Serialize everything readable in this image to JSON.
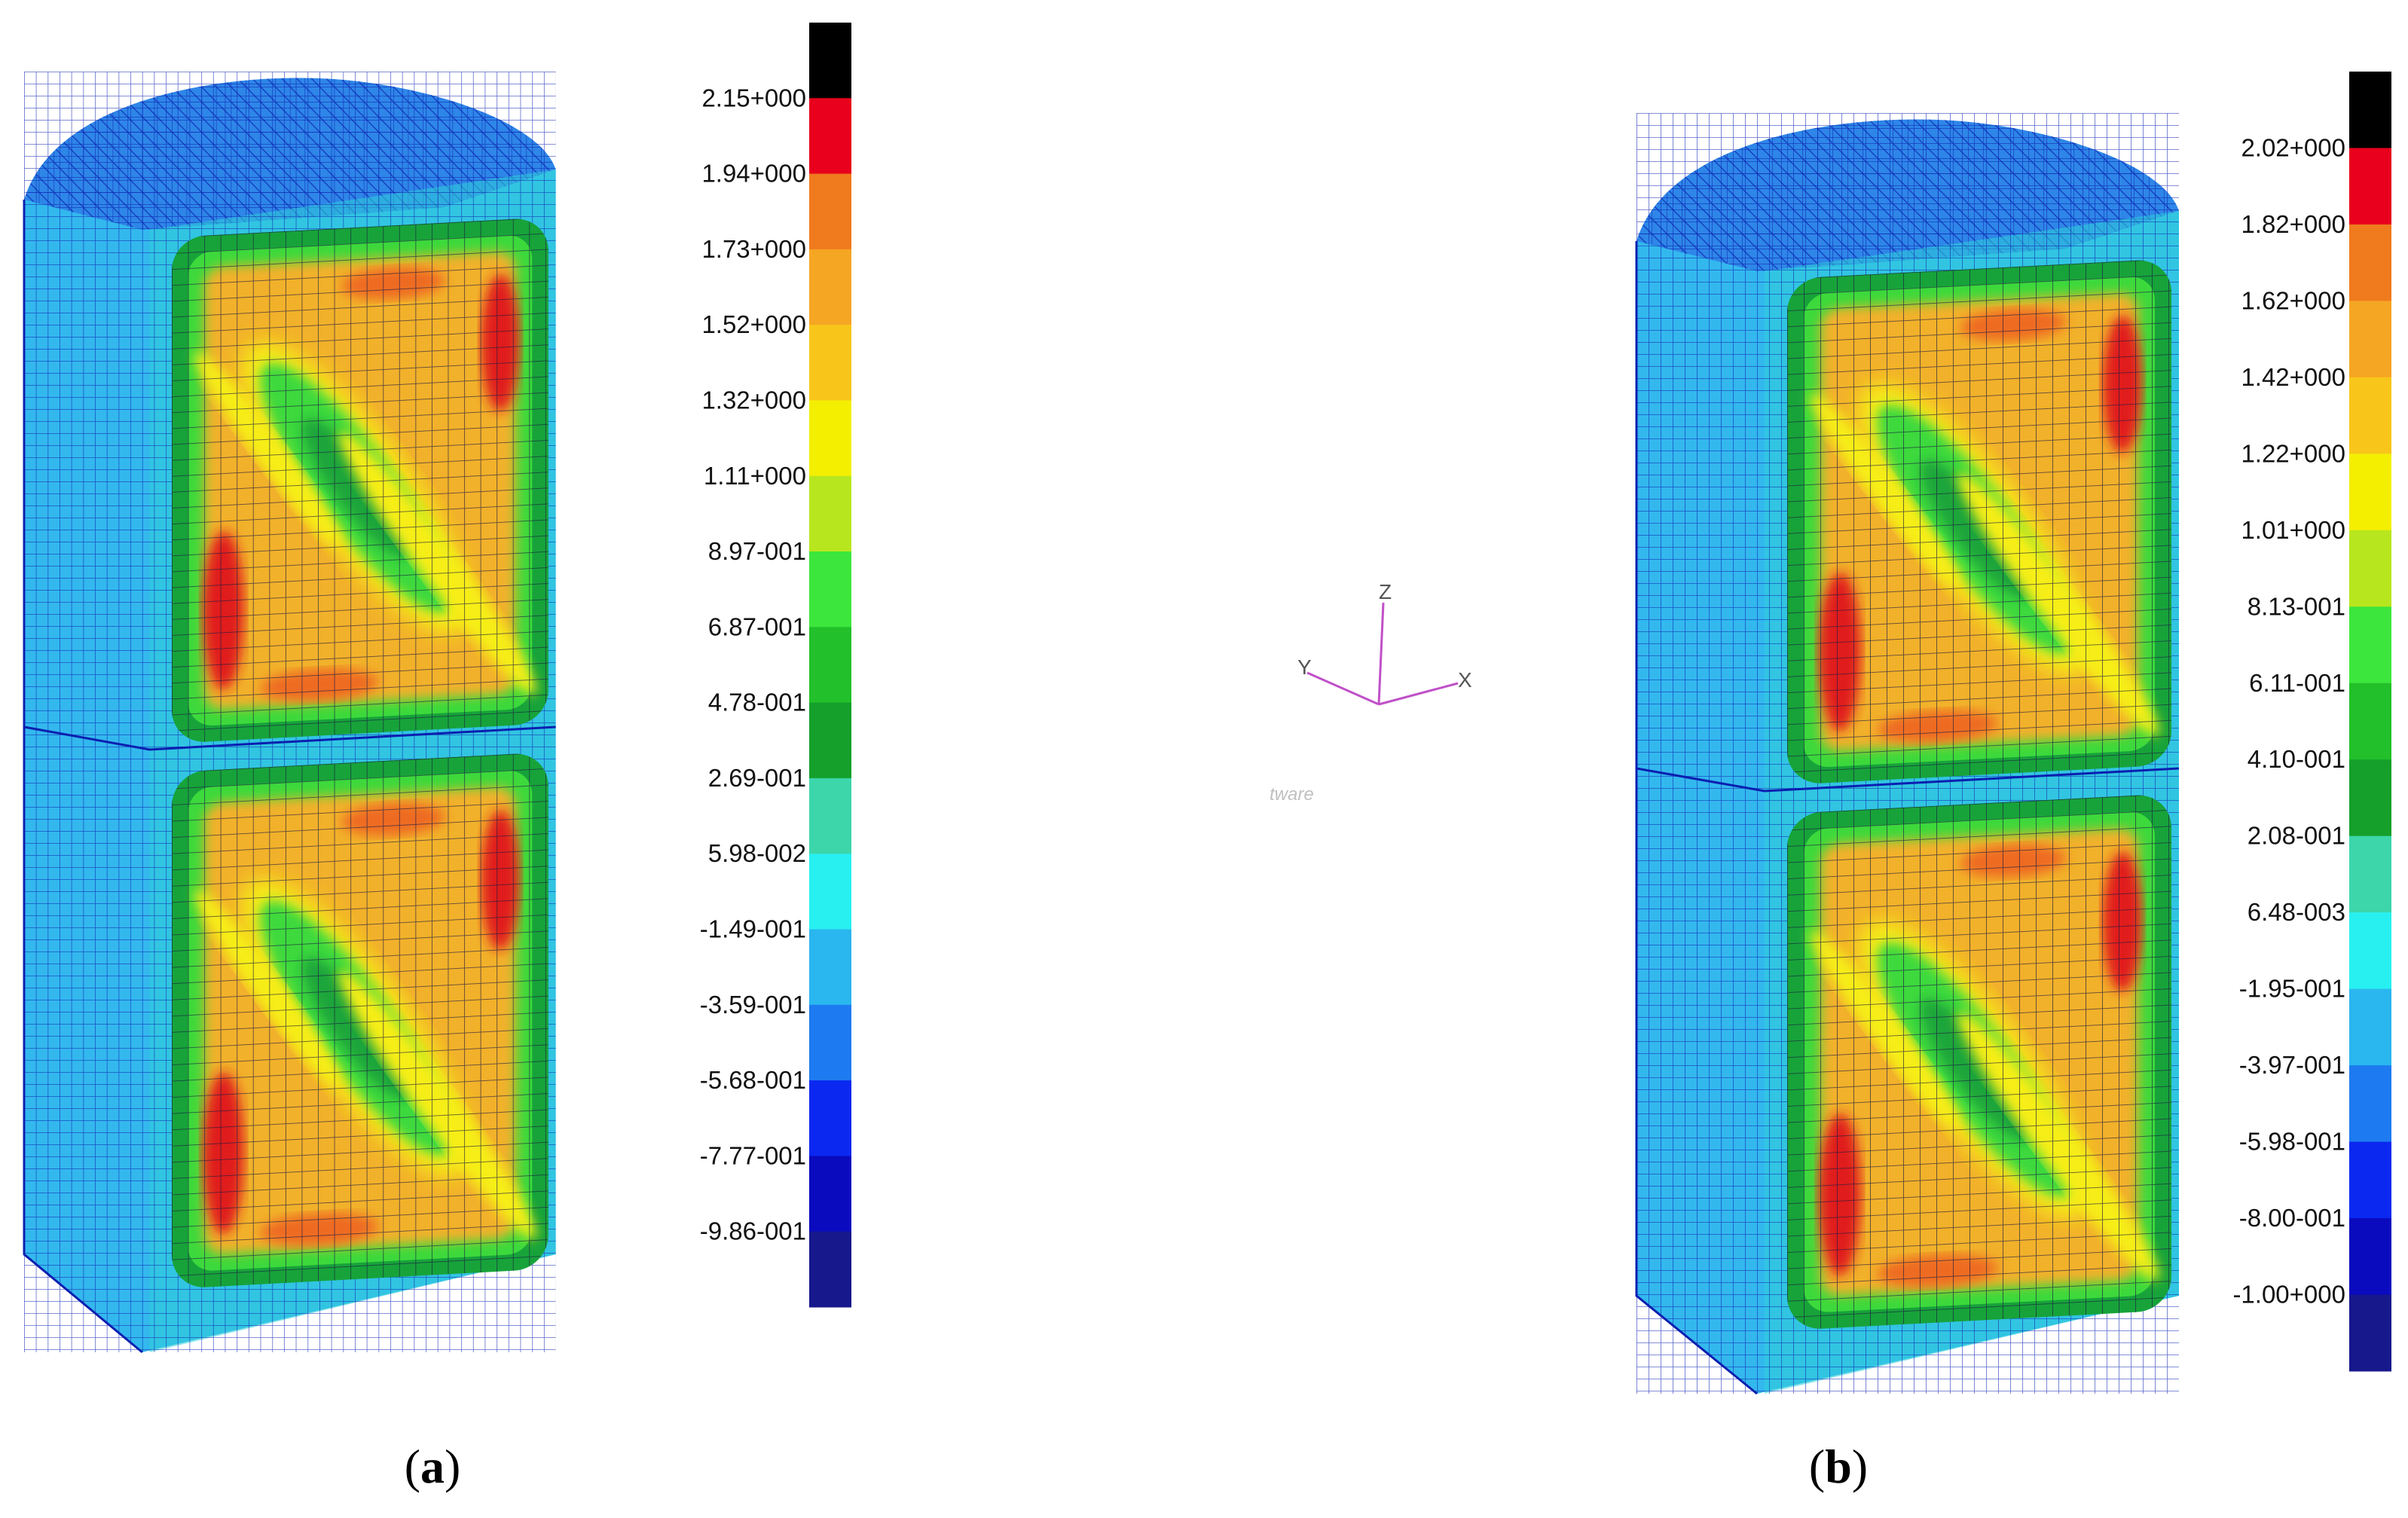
{
  "panels": [
    {
      "caption_open": "(",
      "caption_letter": "a",
      "caption_close": ")",
      "legend_labels": [
        "2.15+000",
        "1.94+000",
        "1.73+000",
        "1.52+000",
        "1.32+000",
        "1.11+000",
        "8.97-001",
        "6.87-001",
        "4.78-001",
        "2.69-001",
        "5.98-002",
        "-1.49-001",
        "-3.59-001",
        "-5.68-001",
        "-7.77-001",
        "-9.86-001"
      ]
    },
    {
      "caption_open": "(",
      "caption_letter": "b",
      "caption_close": ")",
      "legend_labels": [
        "2.02+000",
        "1.82+000",
        "1.62+000",
        "1.42+000",
        "1.22+000",
        "1.01+000",
        "8.13-001",
        "6.11-001",
        "4.10-001",
        "2.08-001",
        "6.48-003",
        "-1.95-001",
        "-3.97-001",
        "-5.98-001",
        "-8.00-001",
        "-1.00+000"
      ]
    }
  ],
  "legend_colors": [
    "#000000",
    "#e8001c",
    "#f07a1e",
    "#f5a623",
    "#f8c61a",
    "#f4ef00",
    "#b8e61e",
    "#3ce63c",
    "#22c02a",
    "#14a02a",
    "#3cd6aa",
    "#28f0f0",
    "#2ab6ee",
    "#1e7af0",
    "#0a28f0",
    "#0a0abe",
    "#16188c"
  ],
  "axis_triad": {
    "z": "Z",
    "y": "Y",
    "x": "X",
    "watermark": "tware"
  }
}
